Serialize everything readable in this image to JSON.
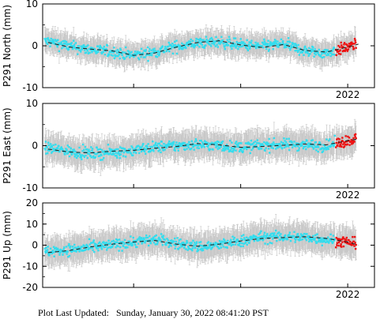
{
  "footer": {
    "label": "Plot Last Updated:",
    "value": "Sunday, January 30, 2022 08:41:20 PST"
  },
  "colors": {
    "point": "#33ddee",
    "recent_point": "#ee1111",
    "error_bar": "#c8c8c8",
    "trend": "#222222"
  },
  "chart_data": [
    {
      "type": "scatter",
      "ylabel": "P291 North (mm)",
      "ylim": [
        -10,
        10
      ],
      "yticks": [
        -10,
        0,
        10
      ],
      "xtick_label": "2022",
      "xlim": [
        2019.15,
        2022.25
      ],
      "trend": {
        "x": [
          2019.2,
          2019.4,
          2019.6,
          2019.8,
          2020.0,
          2020.2,
          2020.4,
          2020.6,
          2020.8,
          2021.0,
          2021.2,
          2021.4,
          2021.6,
          2021.8,
          2022.0,
          2022.1
        ],
        "y": [
          0.8,
          -0.3,
          -0.8,
          -1.2,
          -2.3,
          -1.7,
          -0.3,
          0.8,
          1.2,
          0.2,
          -0.4,
          0.3,
          -1.1,
          -1.5,
          -0.3,
          0.4
        ]
      },
      "series": [
        {
          "x_range": [
            2019.17,
            2021.88
          ],
          "kind": "daily",
          "color": "point"
        },
        {
          "x_range": [
            2021.89,
            2022.08
          ],
          "kind": "recent",
          "color": "recent_point"
        }
      ],
      "error_bar_mm": 2.5
    },
    {
      "type": "scatter",
      "ylabel": "P291 East (mm)",
      "ylim": [
        -10,
        10
      ],
      "yticks": [
        -10,
        0,
        10
      ],
      "xtick_label": "2022",
      "xlim": [
        2019.15,
        2022.25
      ],
      "trend": {
        "x": [
          2019.2,
          2019.4,
          2019.6,
          2019.8,
          2020.0,
          2020.2,
          2020.4,
          2020.6,
          2020.8,
          2021.0,
          2021.2,
          2021.4,
          2021.6,
          2021.8,
          2022.0,
          2022.1
        ],
        "y": [
          -0.8,
          -1.5,
          -1.7,
          -1.3,
          -1.1,
          -0.6,
          -0.2,
          0.5,
          0.2,
          -0.4,
          -0.2,
          0.1,
          0.4,
          0.2,
          1.2,
          1.6
        ]
      },
      "series": [
        {
          "x_range": [
            2019.17,
            2021.88
          ],
          "kind": "daily",
          "color": "point"
        },
        {
          "x_range": [
            2021.89,
            2022.08
          ],
          "kind": "recent",
          "color": "recent_point"
        }
      ],
      "error_bar_mm": 3.0
    },
    {
      "type": "scatter",
      "ylabel": "P291 Up (mm)",
      "ylim": [
        -20,
        20
      ],
      "yticks": [
        -20,
        -10,
        0,
        10,
        20
      ],
      "xtick_label": "2022",
      "xlim": [
        2019.15,
        2022.25
      ],
      "trend": {
        "x": [
          2019.2,
          2019.4,
          2019.6,
          2019.8,
          2020.0,
          2020.2,
          2020.4,
          2020.6,
          2020.8,
          2021.0,
          2021.2,
          2021.4,
          2021.6,
          2021.8,
          2022.0,
          2022.1
        ],
        "y": [
          -3.5,
          -2.5,
          -0.8,
          0.5,
          1.5,
          2.2,
          0.5,
          -0.5,
          0.5,
          2.0,
          3.2,
          3.6,
          4.0,
          3.2,
          1.5,
          0.0
        ]
      },
      "series": [
        {
          "x_range": [
            2019.17,
            2021.88
          ],
          "kind": "daily",
          "color": "point"
        },
        {
          "x_range": [
            2021.89,
            2022.08
          ],
          "kind": "recent",
          "color": "recent_point"
        }
      ],
      "error_bar_mm": 6.0
    }
  ]
}
